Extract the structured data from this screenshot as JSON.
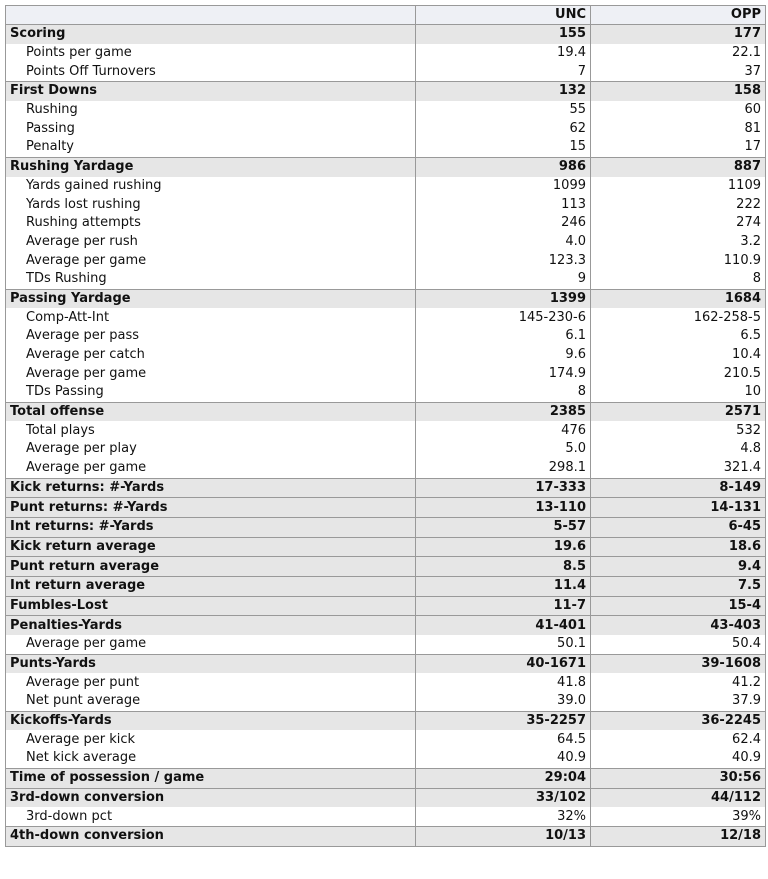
{
  "table": {
    "header": [
      "UNC",
      "OPP"
    ],
    "rows": [
      {
        "label": "Scoring",
        "values": [
          "155",
          "177"
        ],
        "bold": true
      },
      {
        "label": "Points per game",
        "values": [
          "19.4",
          "22.1"
        ]
      },
      {
        "label": "Points Off Turnovers",
        "values": [
          "7",
          "37"
        ]
      },
      {
        "label": "First Downs",
        "values": [
          "132",
          "158"
        ],
        "bold": true
      },
      {
        "label": "Rushing",
        "values": [
          "55",
          "60"
        ]
      },
      {
        "label": "Passing",
        "values": [
          "62",
          "81"
        ]
      },
      {
        "label": "Penalty",
        "values": [
          "15",
          "17"
        ]
      },
      {
        "label": "Rushing Yardage",
        "values": [
          "986",
          "887"
        ],
        "bold": true
      },
      {
        "label": "Yards gained rushing",
        "values": [
          "1099",
          "1109"
        ]
      },
      {
        "label": "Yards lost rushing",
        "values": [
          "113",
          "222"
        ]
      },
      {
        "label": "Rushing attempts",
        "values": [
          "246",
          "274"
        ]
      },
      {
        "label": "Average per rush",
        "values": [
          "4.0",
          "3.2"
        ]
      },
      {
        "label": "Average per game",
        "values": [
          "123.3",
          "110.9"
        ]
      },
      {
        "label": "TDs Rushing",
        "values": [
          "9",
          "8"
        ]
      },
      {
        "label": "Passing Yardage",
        "values": [
          "1399",
          "1684"
        ],
        "bold": true
      },
      {
        "label": "Comp-Att-Int",
        "values": [
          "145-230-6",
          "162-258-5"
        ]
      },
      {
        "label": "Average per pass",
        "values": [
          "6.1",
          "6.5"
        ]
      },
      {
        "label": "Average per catch",
        "values": [
          "9.6",
          "10.4"
        ]
      },
      {
        "label": "Average per game",
        "values": [
          "174.9",
          "210.5"
        ]
      },
      {
        "label": "TDs Passing",
        "values": [
          "8",
          "10"
        ]
      },
      {
        "label": "Total offense",
        "values": [
          "2385",
          "2571"
        ],
        "bold": true
      },
      {
        "label": "Total plays",
        "values": [
          "476",
          "532"
        ]
      },
      {
        "label": "Average per play",
        "values": [
          "5.0",
          "4.8"
        ]
      },
      {
        "label": "Average per game",
        "values": [
          "298.1",
          "321.4"
        ]
      },
      {
        "label": "Kick returns: #-Yards",
        "values": [
          "17-333",
          "8-149"
        ],
        "bold": true
      },
      {
        "label": "Punt returns: #-Yards",
        "values": [
          "13-110",
          "14-131"
        ],
        "bold": true
      },
      {
        "label": "Int returns: #-Yards",
        "values": [
          "5-57",
          "6-45"
        ],
        "bold": true
      },
      {
        "label": "Kick return average",
        "values": [
          "19.6",
          "18.6"
        ],
        "bold": true
      },
      {
        "label": "Punt return average",
        "values": [
          "8.5",
          "9.4"
        ],
        "bold": true
      },
      {
        "label": "Int return average",
        "values": [
          "11.4",
          "7.5"
        ],
        "bold": true
      },
      {
        "label": "Fumbles-Lost",
        "values": [
          "11-7",
          "15-4"
        ],
        "bold": true
      },
      {
        "label": "Penalties-Yards",
        "values": [
          "41-401",
          "43-403"
        ],
        "bold": true
      },
      {
        "label": "Average per game",
        "values": [
          "50.1",
          "50.4"
        ]
      },
      {
        "label": "Punts-Yards",
        "values": [
          "40-1671",
          "39-1608"
        ],
        "bold": true
      },
      {
        "label": "Average per punt",
        "values": [
          "41.8",
          "41.2"
        ]
      },
      {
        "label": "Net punt average",
        "values": [
          "39.0",
          "37.9"
        ]
      },
      {
        "label": "Kickoffs-Yards",
        "values": [
          "35-2257",
          "36-2245"
        ],
        "bold": true
      },
      {
        "label": "Average per kick",
        "values": [
          "64.5",
          "62.4"
        ]
      },
      {
        "label": "Net kick average",
        "values": [
          "40.9",
          "40.9"
        ]
      },
      {
        "label": "Time of possession / game",
        "values": [
          "29:04",
          "30:56"
        ],
        "bold": true
      },
      {
        "label": "3rd-down conversion",
        "values": [
          "33/102",
          "44/112"
        ],
        "bold": true
      },
      {
        "label": "3rd-down pct",
        "values": [
          "32%",
          "39%"
        ]
      },
      {
        "label": "4th-down conversion",
        "values": [
          "10/13",
          "12/18"
        ],
        "bold": true
      }
    ]
  }
}
